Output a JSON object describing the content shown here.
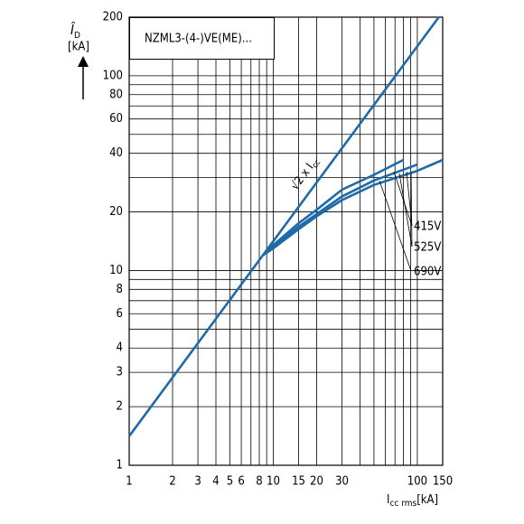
{
  "chart_data": {
    "type": "line",
    "box_label": "NZML3-(4-)VE(ME)...",
    "y_label": {
      "symbol": "Î",
      "subscript": "D",
      "unit": "[kA]"
    },
    "x_label": {
      "symbol": "I",
      "subscript": "cc rms",
      "unit": "[kA]"
    },
    "line_annotation": {
      "text": "√2 x I",
      "subscript": "cc"
    },
    "log_x": true,
    "log_y": true,
    "grid": true,
    "xlim": [
      1,
      150
    ],
    "ylim": [
      1,
      200
    ],
    "xticks": [
      1,
      2,
      3,
      4,
      5,
      6,
      8,
      10,
      15,
      20,
      30,
      100,
      150
    ],
    "xminor": [
      7,
      9,
      40,
      50,
      60,
      70,
      80,
      90
    ],
    "yticks": [
      1,
      2,
      3,
      4,
      6,
      8,
      10,
      20,
      40,
      60,
      80,
      100,
      200
    ],
    "yminor": [
      5,
      7,
      9,
      30,
      50,
      70,
      90
    ],
    "series": [
      {
        "color": "#1f6aa8",
        "x": [
          1,
          141
        ],
        "y": [
          1.41,
          200
        ]
      },
      {
        "name": "415V",
        "color": "#1f6aa8",
        "x": [
          8.5,
          10,
          15,
          20,
          30,
          50,
          80
        ],
        "y": [
          12,
          13.5,
          17.5,
          20.5,
          26,
          31,
          37
        ]
      },
      {
        "name": "525V",
        "color": "#1f6aa8",
        "x": [
          8.5,
          10,
          15,
          20,
          30,
          50,
          100
        ],
        "y": [
          12,
          13.3,
          16.8,
          19.5,
          24,
          29,
          35
        ]
      },
      {
        "name": "690V",
        "color": "#1f6aa8",
        "x": [
          8.5,
          10,
          15,
          20,
          30,
          50,
          100,
          150
        ],
        "y": [
          12,
          13,
          16.3,
          19,
          23,
          27.5,
          32.5,
          37
        ]
      }
    ]
  }
}
